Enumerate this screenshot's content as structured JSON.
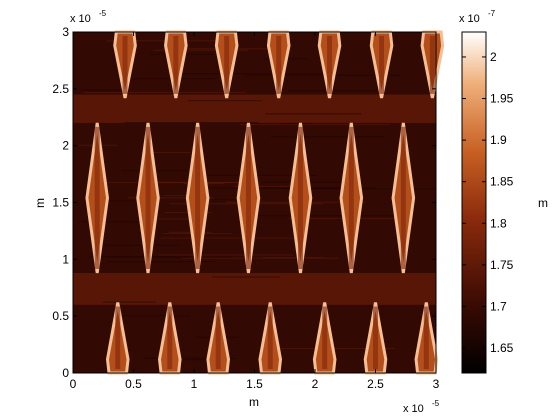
{
  "chart_data": {
    "type": "heatmap",
    "colormap": "hot-brown",
    "grid": false,
    "xlabel": "m",
    "ylabel": "m",
    "xlim": [
      0,
      3e-05
    ],
    "ylim": [
      0,
      3e-05
    ],
    "x_ticks": [
      0,
      0.5,
      1,
      1.5,
      2,
      2.5,
      3
    ],
    "y_ticks": [
      0,
      0.5,
      1,
      1.5,
      2,
      2.5,
      3
    ],
    "x_tick_labels": [
      "0",
      "0.5",
      "1",
      "1.5",
      "2",
      "2.5",
      "3"
    ],
    "y_tick_labels": [
      "0",
      "0.5",
      "1",
      "1.5",
      "2",
      "2.5",
      "3"
    ],
    "x_multiplier": {
      "base": "x 10",
      "exp": "-5"
    },
    "y_multiplier": {
      "base": "x 10",
      "exp": "-5"
    },
    "colorbar": {
      "label": "m",
      "clim": [
        1.62,
        2.03
      ],
      "ticks": [
        1.65,
        1.7,
        1.75,
        1.8,
        1.85,
        1.9,
        1.95,
        2
      ],
      "tick_labels": [
        "1.65",
        "1.7",
        "1.75",
        "1.8",
        "1.85",
        "1.9",
        "1.95",
        "2"
      ],
      "multiplier": {
        "base": "x 10",
        "exp": "-7"
      }
    },
    "surface": {
      "units": "x 10^-7 m",
      "background_height": 1.69,
      "band_height": 1.74,
      "bands_y": [
        [
          0.6,
          0.88
        ],
        [
          2.2,
          2.45
        ]
      ],
      "features": [
        {
          "row": "bottom",
          "x_centers": [
            0.37,
            0.8,
            1.2,
            1.63,
            2.08,
            2.5,
            2.92
          ],
          "y_range": [
            0.0,
            0.62
          ],
          "peak_height": 1.98
        },
        {
          "row": "middle",
          "x_centers": [
            0.2,
            0.62,
            1.03,
            1.45,
            1.88,
            2.3,
            2.73
          ],
          "y_range": [
            0.88,
            2.2
          ],
          "peak_height": 1.98
        },
        {
          "row": "top",
          "x_centers": [
            0.43,
            0.85,
            1.27,
            1.7,
            2.12,
            2.55,
            2.97
          ],
          "y_range": [
            2.42,
            3.0
          ],
          "peak_height": 1.98
        }
      ]
    }
  }
}
